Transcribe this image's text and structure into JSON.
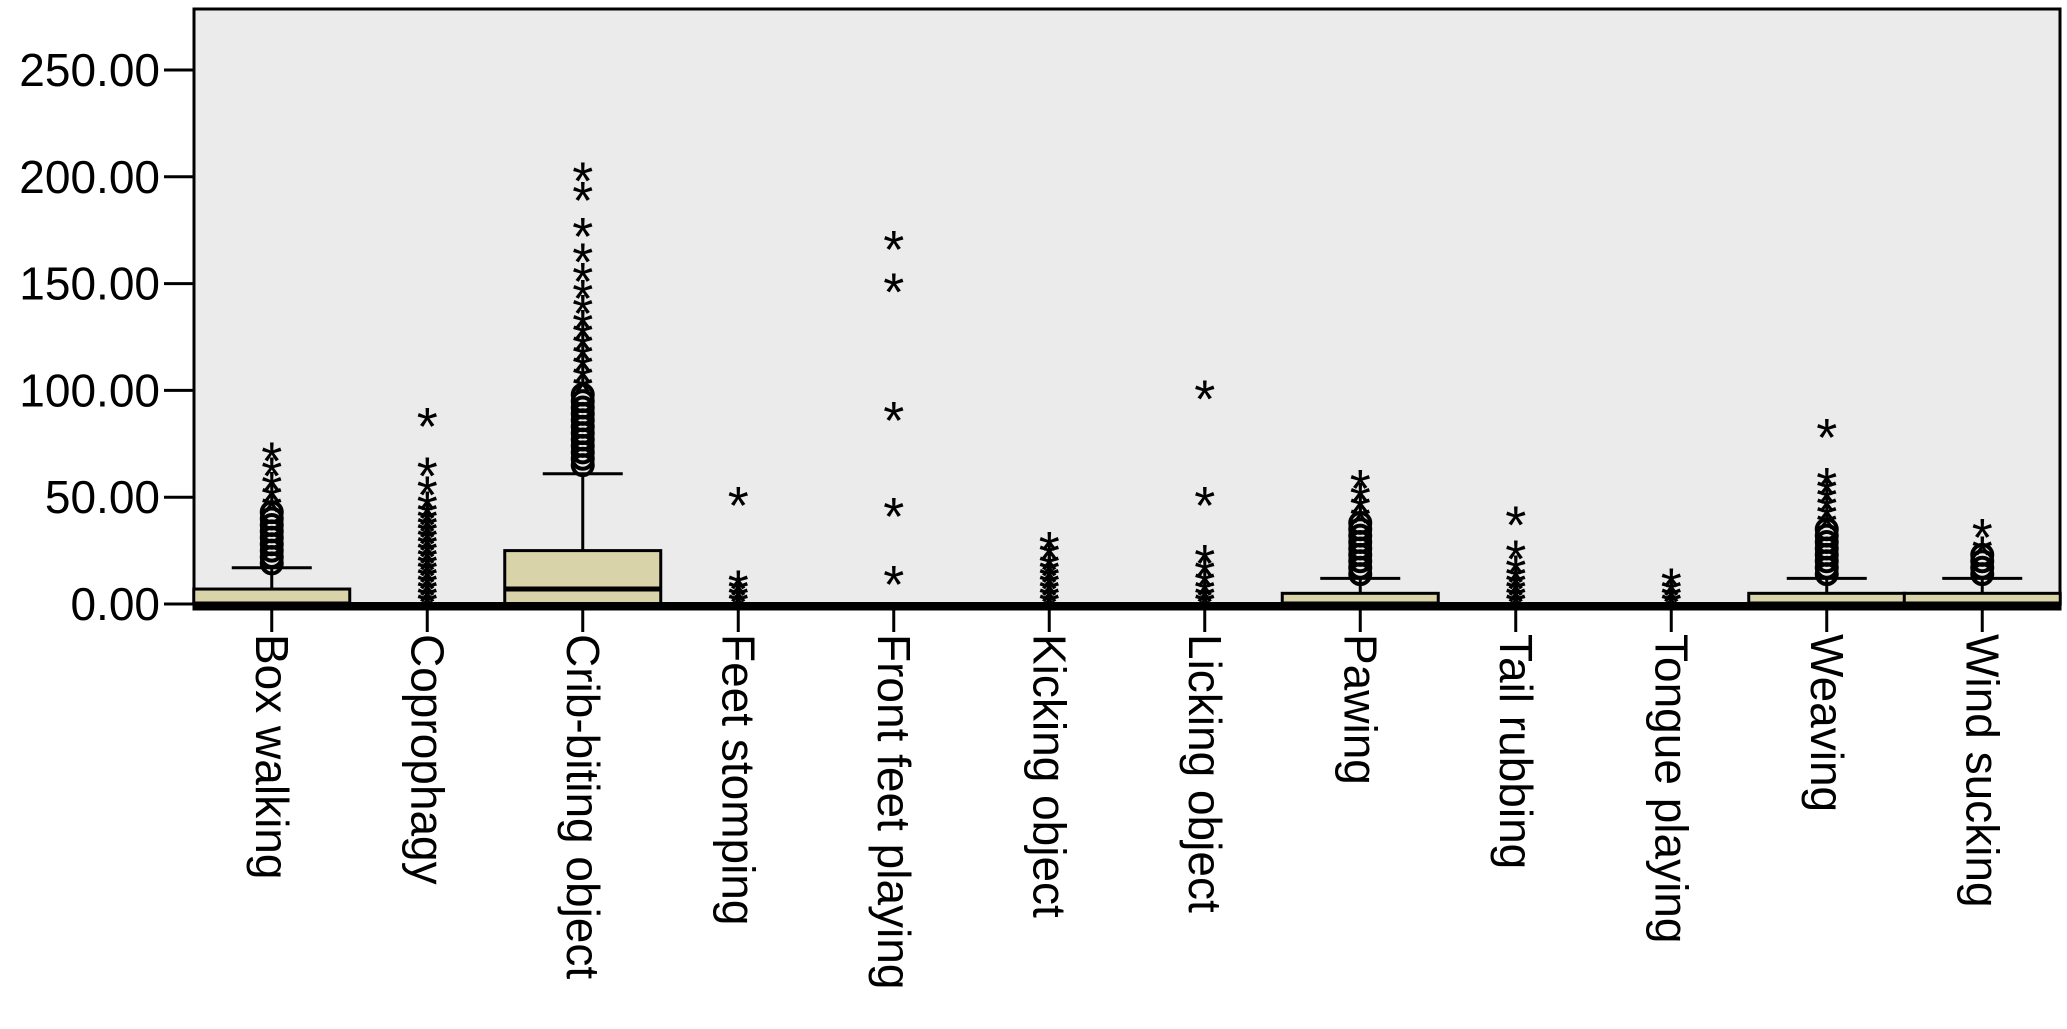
{
  "chart_data": {
    "type": "boxplot",
    "yticks": [
      "0.00",
      "50.00",
      "100.00",
      "150.00",
      "200.00",
      "250.00"
    ],
    "ylim": [
      0,
      280
    ],
    "grid": false,
    "categories": [
      "Box walking",
      "Coprophagy",
      "Crib-biting object",
      "Feet stomping",
      "Front feet playing",
      "Kicking object",
      "Licking object",
      "Pawing",
      "Tail rubbing",
      "Tongue playing",
      "Weaving",
      "Wind sucking"
    ],
    "boxes": [
      {
        "category": "Box walking",
        "q1": 0,
        "median": 0,
        "q3": 7,
        "whisker_high": 17,
        "circles": [
          19,
          22,
          25,
          28,
          31,
          34,
          37,
          40,
          43
        ],
        "stars": [
          47,
          52,
          57,
          64,
          71
        ]
      },
      {
        "category": "Coprophagy",
        "q1": 0,
        "median": 0,
        "q3": 0,
        "whisker_high": 0,
        "circles": [],
        "stars": [
          2,
          5,
          8,
          11,
          14,
          17,
          20,
          23,
          26,
          29,
          32,
          35,
          38,
          41,
          44,
          48,
          55,
          64,
          87
        ]
      },
      {
        "category": "Crib-biting object",
        "q1": 0,
        "median": 7,
        "q3": 25,
        "whisker_high": 61,
        "circles": [
          65,
          68,
          71,
          74,
          77,
          80,
          83,
          86,
          89,
          92,
          95,
          98
        ],
        "stars": [
          103,
          108,
          113,
          118,
          123,
          128,
          133,
          140,
          147,
          155,
          164,
          176,
          193,
          202
        ]
      },
      {
        "category": "Feet stomping",
        "q1": 0,
        "median": 0,
        "q3": 0,
        "whisker_high": 0,
        "circles": [],
        "stars": [
          2,
          5,
          8,
          11,
          50
        ]
      },
      {
        "category": "Front feet playing",
        "q1": 0,
        "median": 0,
        "q3": 0,
        "whisker_high": 0,
        "circles": [],
        "stars": [
          13,
          45,
          90,
          150,
          170
        ]
      },
      {
        "category": "Kicking object",
        "q1": 0,
        "median": 0,
        "q3": 0,
        "whisker_high": 0,
        "circles": [],
        "stars": [
          2,
          5,
          8,
          11,
          14,
          17,
          20,
          25,
          29
        ]
      },
      {
        "category": "Licking object",
        "q1": 0,
        "median": 0,
        "q3": 0,
        "whisker_high": 0,
        "circles": [],
        "stars": [
          2,
          5,
          8,
          12,
          17,
          23,
          50,
          100
        ]
      },
      {
        "category": "Pawing",
        "q1": 0,
        "median": 0,
        "q3": 5,
        "whisker_high": 12,
        "circles": [
          14,
          17,
          20,
          23,
          26,
          29,
          32,
          35,
          38
        ],
        "stars": [
          42,
          47,
          52,
          58
        ]
      },
      {
        "category": "Tail rubbing",
        "q1": 0,
        "median": 0,
        "q3": 0,
        "whisker_high": 0,
        "circles": [],
        "stars": [
          2,
          5,
          8,
          11,
          14,
          18,
          25,
          41
        ]
      },
      {
        "category": "Tongue playing",
        "q1": 0,
        "median": 0,
        "q3": 0,
        "whisker_high": 0,
        "circles": [],
        "stars": [
          2,
          5,
          8,
          12
        ]
      },
      {
        "category": "Weaving",
        "q1": 0,
        "median": 0,
        "q3": 5,
        "whisker_high": 12,
        "circles": [
          14,
          17,
          20,
          23,
          26,
          29,
          32,
          35
        ],
        "stars": [
          39,
          43,
          47,
          51,
          55,
          59,
          82
        ]
      },
      {
        "category": "Wind sucking",
        "q1": 0,
        "median": 0,
        "q3": 5,
        "whisker_high": 12,
        "circles": [
          14,
          17,
          20,
          23
        ],
        "stars": [
          27,
          35
        ]
      }
    ]
  },
  "colors": {
    "plot_background": "#ebebeb",
    "box_fill": "#d8d3a8",
    "ink": "#000000"
  }
}
